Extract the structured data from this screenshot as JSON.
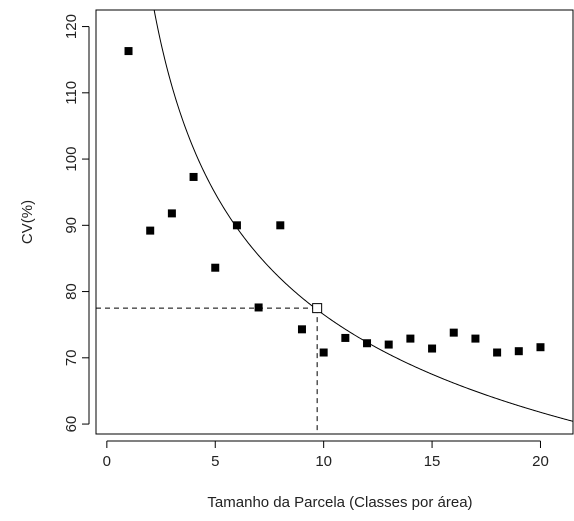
{
  "chart_data": {
    "type": "scatter",
    "xlabel": "Tamanho da Parcela (Classes por área)",
    "ylabel": "CV(%)",
    "xlim": [
      -0.5,
      21.5
    ],
    "ylim": [
      58.5,
      122.5
    ],
    "x_ticks": [
      0,
      5,
      10,
      15,
      20
    ],
    "y_ticks": [
      60,
      70,
      80,
      90,
      100,
      110,
      120
    ],
    "grid": false,
    "points": [
      {
        "x": 1,
        "y": 116.3
      },
      {
        "x": 2,
        "y": 89.2
      },
      {
        "x": 3,
        "y": 91.8
      },
      {
        "x": 4,
        "y": 97.3
      },
      {
        "x": 5,
        "y": 83.6
      },
      {
        "x": 6,
        "y": 90.0
      },
      {
        "x": 7,
        "y": 77.6
      },
      {
        "x": 8,
        "y": 90.0
      },
      {
        "x": 9,
        "y": 74.3
      },
      {
        "x": 10,
        "y": 70.8
      },
      {
        "x": 11,
        "y": 73.0
      },
      {
        "x": 12,
        "y": 72.2
      },
      {
        "x": 13,
        "y": 72.0
      },
      {
        "x": 14,
        "y": 72.9
      },
      {
        "x": 15,
        "y": 71.4
      },
      {
        "x": 16,
        "y": 73.8
      },
      {
        "x": 17,
        "y": 72.9
      },
      {
        "x": 18,
        "y": 70.8
      },
      {
        "x": 19,
        "y": 71.0
      },
      {
        "x": 20,
        "y": 71.6
      }
    ],
    "fitted_curve": {
      "a": 155.9,
      "b": 0.309,
      "form": "y = a * x^(-b)"
    },
    "reference_point": {
      "x": 9.7,
      "y": 77.5
    }
  }
}
